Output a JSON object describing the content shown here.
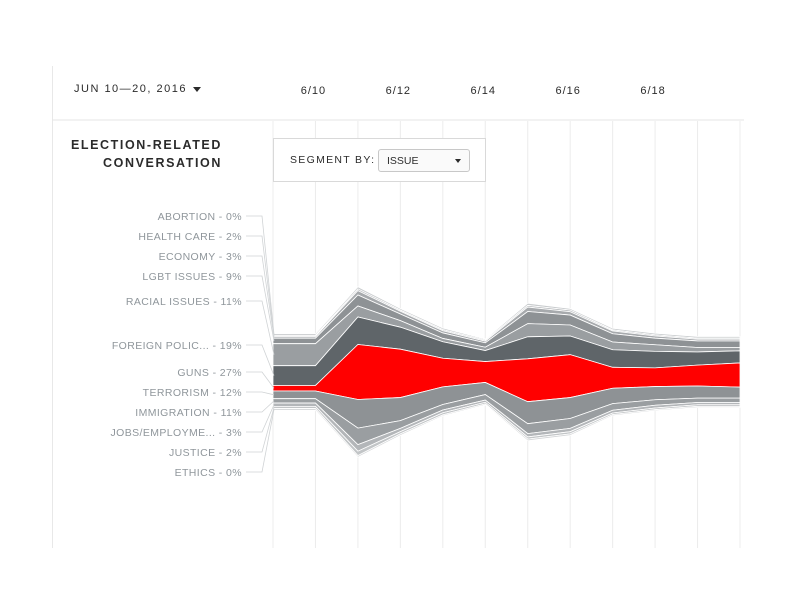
{
  "header": {
    "date_range": "JUN 10—20, 2016"
  },
  "title_lines": [
    "ELECTION-RELATED",
    "CONVERSATION"
  ],
  "segment": {
    "label": "SEGMENT BY:",
    "value": "ISSUE"
  },
  "colors": {
    "highlight": "#ff0000",
    "dark": "#5f6569",
    "mid": "#8e9295",
    "light": "#b3b6b9",
    "pale": "#c9ccce",
    "label": "#8f969b"
  },
  "chart_data": {
    "type": "area",
    "stacking": "streamgraph",
    "x": [
      "6/9",
      "6/10",
      "6/11",
      "6/12",
      "6/13",
      "6/14",
      "6/15",
      "6/16",
      "6/17",
      "6/18",
      "6/19",
      "6/20"
    ],
    "x_tick_labels": [
      "6/10",
      "6/12",
      "6/14",
      "6/16",
      "6/18"
    ],
    "series": [
      {
        "name": "ABORTION - 0%",
        "color": "#c9ccce",
        "values": [
          3,
          3,
          4,
          3,
          3,
          2,
          4,
          3,
          3,
          3,
          3,
          3
        ]
      },
      {
        "name": "HEALTH CARE - 2%",
        "color": "#b3b6b9",
        "values": [
          2,
          2,
          3,
          2,
          2,
          2,
          3,
          3,
          2,
          2,
          2,
          2
        ]
      },
      {
        "name": "ECONOMY - 3%",
        "color": "#a7aaad",
        "values": [
          3,
          3,
          8,
          5,
          4,
          3,
          8,
          6,
          5,
          4,
          3,
          3
        ]
      },
      {
        "name": "LGBT ISSUES - 9%",
        "color": "#8e9295",
        "values": [
          10,
          10,
          20,
          12,
          10,
          8,
          22,
          18,
          15,
          12,
          12,
          12
        ]
      },
      {
        "name": "RACIAL ISSUES - 11%",
        "color": "#9a9ea1",
        "values": [
          40,
          40,
          20,
          12,
          6,
          6,
          24,
          20,
          14,
          12,
          8,
          6
        ]
      },
      {
        "name": "FOREIGN POLIC... - 19%",
        "color": "#5f6569",
        "values": [
          36,
          36,
          50,
          40,
          30,
          20,
          40,
          34,
          32,
          30,
          24,
          22
        ]
      },
      {
        "name": "GUNS - 27%",
        "color": "#ff0000",
        "values": [
          10,
          10,
          100,
          88,
          52,
          38,
          78,
          78,
          38,
          34,
          38,
          44
        ]
      },
      {
        "name": "TERRORISM - 12%",
        "color": "#8e9295",
        "values": [
          14,
          14,
          52,
          42,
          32,
          22,
          40,
          38,
          28,
          24,
          22,
          20
        ]
      },
      {
        "name": "IMMIGRATION - 11%",
        "color": "#9a9ea1",
        "values": [
          8,
          8,
          30,
          14,
          10,
          10,
          18,
          18,
          12,
          10,
          8,
          8
        ]
      },
      {
        "name": "JOBS/EMPLOYME... - 3%",
        "color": "#b3b6b9",
        "values": [
          6,
          6,
          12,
          6,
          5,
          4,
          6,
          6,
          5,
          5,
          4,
          4
        ]
      },
      {
        "name": "JUSTICE - 2%",
        "color": "#c2c5c7",
        "values": [
          4,
          4,
          8,
          4,
          4,
          3,
          4,
          4,
          3,
          3,
          3,
          3
        ]
      },
      {
        "name": "ETHICS - 0%",
        "color": "#d3d5d7",
        "values": [
          3,
          3,
          3,
          3,
          2,
          2,
          3,
          3,
          2,
          2,
          2,
          2
        ]
      }
    ]
  }
}
